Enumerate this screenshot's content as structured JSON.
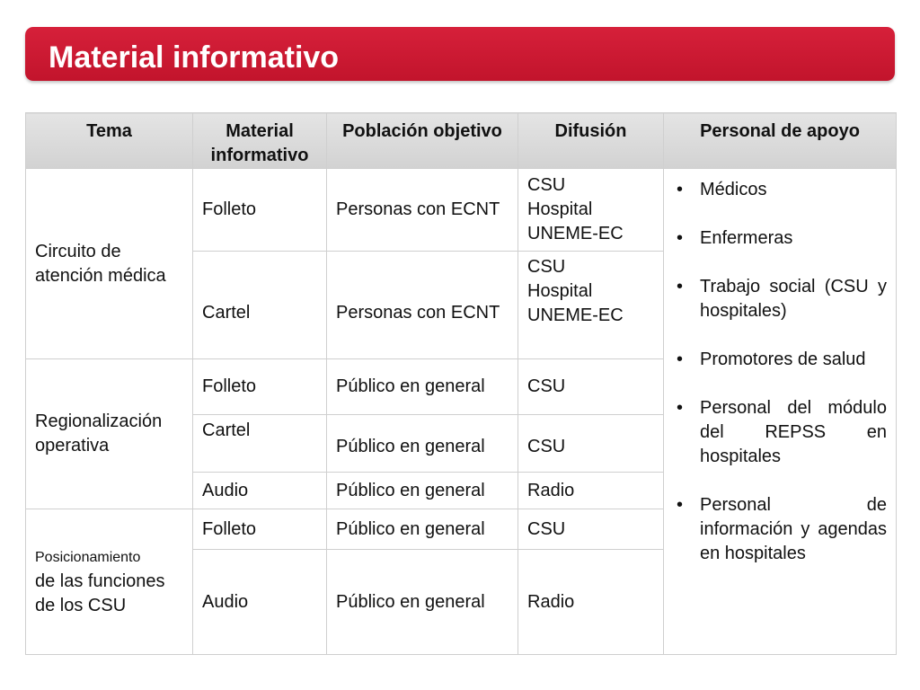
{
  "title": "Material informativo",
  "table": {
    "headers": [
      "Tema",
      "Material informativo",
      "Población objetivo",
      "Difusión",
      "Personal de apoyo"
    ],
    "groups": [
      {
        "tema": "Circuito de atención médica",
        "rows": [
          {
            "material": "Folleto",
            "poblacion": "Personas con ECNT",
            "difusion": [
              "CSU",
              "Hospital",
              "UNEME-EC"
            ]
          },
          {
            "material": "Cartel",
            "poblacion": "Personas con ECNT",
            "difusion": [
              "CSU",
              "Hospital",
              "UNEME-EC"
            ]
          }
        ]
      },
      {
        "tema": "Regionalización operativa",
        "rows": [
          {
            "material": "Folleto",
            "poblacion": "Público en general",
            "difusion": [
              "CSU"
            ]
          },
          {
            "material": "Cartel",
            "poblacion": "Público en general",
            "difusion": [
              "CSU"
            ]
          },
          {
            "material": "Audio",
            "poblacion": "Público en general",
            "difusion": [
              "Radio"
            ]
          }
        ]
      },
      {
        "tema_line1": "Posicionamiento",
        "tema_line2": "de las funciones de los CSU",
        "rows": [
          {
            "material": "Folleto",
            "poblacion": "Público en general",
            "difusion": [
              "CSU"
            ]
          },
          {
            "material": "Audio",
            "poblacion": "Público en general",
            "difusion": [
              "Radio"
            ]
          }
        ]
      }
    ],
    "personal_de_apoyo": [
      "Médicos",
      "Enfermeras",
      "Trabajo social (CSU y hospitales)",
      "Promotores de salud",
      "Personal del módulo del REPSS en hospitales",
      "Personal de información y agendas en hospitales"
    ],
    "bullet": "•"
  }
}
